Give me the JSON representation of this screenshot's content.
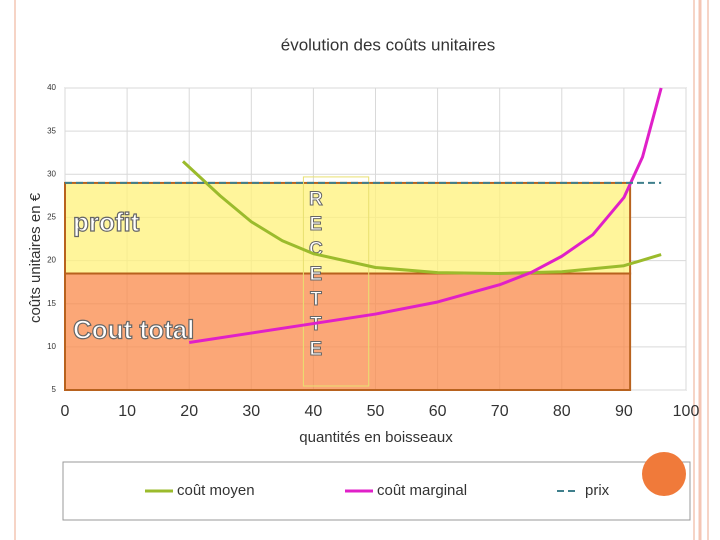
{
  "chart_data": {
    "type": "line",
    "title": "évolution des coûts unitaires",
    "xlabel": "quantités en boisseaux",
    "ylabel": "coûts unitaires en €",
    "xlim": [
      0,
      100
    ],
    "ylim": [
      5,
      40
    ],
    "xticks": [
      0,
      10,
      20,
      30,
      40,
      50,
      60,
      70,
      80,
      90,
      100
    ],
    "yticks": [
      5,
      10,
      15,
      20,
      25,
      30,
      35,
      40
    ],
    "grid": true,
    "series": [
      {
        "name": "coût moyen",
        "color": "#9bbb2c",
        "dashed": false,
        "x": [
          19,
          25,
          30,
          35,
          40,
          50,
          60,
          70,
          80,
          90,
          96
        ],
        "values": [
          31.5,
          27.5,
          24.5,
          22.3,
          20.8,
          19.2,
          18.6,
          18.5,
          18.7,
          19.4,
          20.7
        ]
      },
      {
        "name": "coût marginal",
        "color": "#e020c8",
        "dashed": false,
        "x": [
          20,
          30,
          40,
          50,
          60,
          70,
          75,
          80,
          85,
          90,
          93,
          96
        ],
        "values": [
          10.5,
          11.6,
          12.7,
          13.8,
          15.2,
          17.2,
          18.6,
          20.5,
          23,
          27.3,
          32,
          40
        ]
      },
      {
        "name": "prix",
        "color": "#3f7f8c",
        "dashed": true,
        "x": [
          0,
          96
        ],
        "values": [
          29,
          29
        ]
      }
    ],
    "areas": [
      {
        "label": "profit",
        "color": "#fff27a",
        "x": [
          0,
          91
        ],
        "y": [
          18.5,
          29
        ]
      },
      {
        "label": "Cout total",
        "color": "#f98a4a",
        "x": [
          0,
          91
        ],
        "y": [
          5,
          18.5
        ]
      }
    ],
    "band": {
      "label": "RECETTE",
      "x": [
        40,
        51
      ],
      "y": [
        5,
        29
      ]
    }
  }
}
